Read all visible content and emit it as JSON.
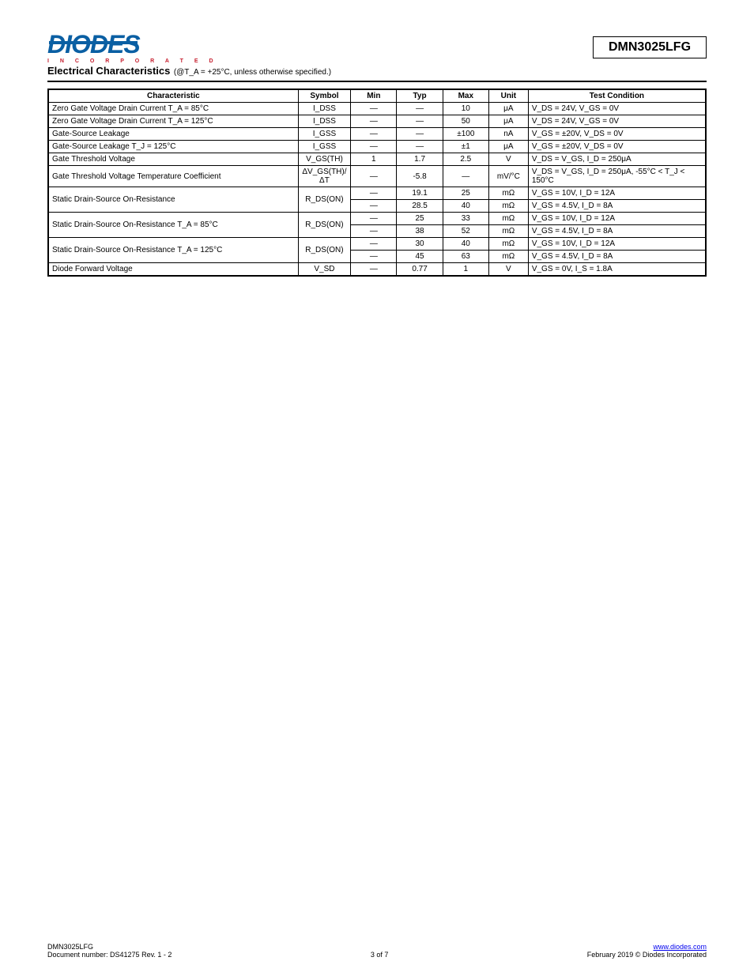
{
  "logo": {
    "brand": "DIODES",
    "tag": "I N C O R P O R A T E D"
  },
  "partNumber": "DMN3025LFG",
  "section": {
    "title": "Electrical Characteristics",
    "condition": "(@T_A = +25°C, unless otherwise specified.)"
  },
  "table": {
    "headers": [
      "Characteristic",
      "Symbol",
      "Min",
      "Typ",
      "Max",
      "Unit",
      "Test Condition"
    ],
    "rows": [
      {
        "char": "Zero Gate Voltage Drain Current T_A = 85°C",
        "sym": "I_DSS",
        "min": "—",
        "typ": "—",
        "max": "10",
        "unit": "μA",
        "cond": "V_DS = 24V, V_GS = 0V"
      },
      {
        "char": "Zero Gate Voltage Drain Current T_A = 125°C",
        "sym": "I_DSS",
        "min": "—",
        "typ": "—",
        "max": "50",
        "unit": "μA",
        "cond": "V_DS = 24V, V_GS = 0V"
      },
      {
        "char": "Gate-Source Leakage",
        "sym": "I_GSS",
        "min": "—",
        "typ": "—",
        "max": "±100",
        "unit": "nA",
        "cond": "V_GS = ±20V, V_DS = 0V"
      },
      {
        "char": "Gate-Source Leakage T_J = 125°C",
        "sym": "I_GSS",
        "min": "—",
        "typ": "—",
        "max": "±1",
        "unit": "μA",
        "cond": "V_GS = ±20V, V_DS = 0V"
      },
      {
        "char": "Gate Threshold Voltage",
        "sym": "V_GS(TH)",
        "min": "1",
        "typ": "1.7",
        "max": "2.5",
        "unit": "V",
        "cond": "V_DS = V_GS, I_D = 250μA"
      },
      {
        "char": "Gate Threshold Voltage Temperature Coefficient",
        "sym": "ΔV_GS(TH)/ΔT",
        "min": "—",
        "typ": "-5.8",
        "max": "—",
        "unit": "mV/°C",
        "cond": "V_DS = V_GS, I_D = 250μA, -55°C < T_J < 150°C"
      },
      {
        "char": "Static Drain-Source On-Resistance",
        "sym": "R_DS(ON)",
        "min": "—",
        "typ": "19.1",
        "max": "25",
        "unit": "mΩ",
        "cond": "V_GS = 10V, I_D = 12A"
      },
      {
        "char": "",
        "sym": "",
        "min": "—",
        "typ": "28.5",
        "max": "40",
        "unit": "mΩ",
        "cond": "V_GS = 4.5V, I_D = 8A"
      },
      {
        "char": "Static Drain-Source On-Resistance T_A = 85°C",
        "sym": "R_DS(ON)",
        "min": "—",
        "typ": "25",
        "max": "33",
        "unit": "mΩ",
        "cond": "V_GS = 10V, I_D = 12A"
      },
      {
        "char": "",
        "sym": "",
        "min": "—",
        "typ": "38",
        "max": "52",
        "unit": "mΩ",
        "cond": "V_GS = 4.5V, I_D = 8A"
      },
      {
        "char": "Static Drain-Source On-Resistance T_A = 125°C",
        "sym": "R_DS(ON)",
        "min": "—",
        "typ": "30",
        "max": "40",
        "unit": "mΩ",
        "cond": "V_GS = 10V, I_D = 12A"
      },
      {
        "char": "",
        "sym": "",
        "min": "—",
        "typ": "45",
        "max": "63",
        "unit": "mΩ",
        "cond": "V_GS = 4.5V, I_D = 8A"
      },
      {
        "char": "Diode Forward Voltage",
        "sym": "V_SD",
        "min": "—",
        "typ": "0.77",
        "max": "1",
        "unit": "V",
        "cond": "V_GS = 0V, I_S = 1.8A"
      }
    ],
    "rowspans": [
      null,
      null,
      null,
      null,
      null,
      null,
      {
        "charRowspan": 2,
        "symRowspan": 2
      },
      null,
      {
        "charRowspan": 2,
        "symRowspan": 2
      },
      null,
      {
        "charRowspan": 2,
        "symRowspan": 2
      },
      null,
      null
    ]
  },
  "footer": {
    "leftLine1": "DMN3025LFG",
    "leftLine2": "Document number: DS41275 Rev. 1 - 2",
    "center": "3 of 7",
    "rightLine1": "www.diodes.com",
    "rightLine2Prefix": "February 2019",
    "rightLine2": "© Diodes Incorporated"
  }
}
